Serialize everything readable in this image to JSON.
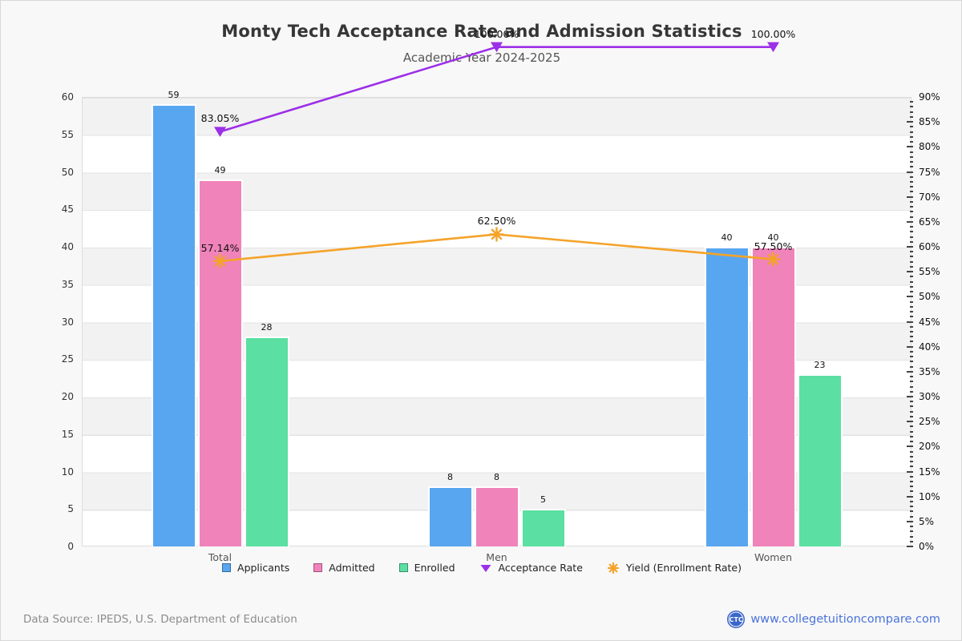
{
  "title": "Monty Tech Acceptance Rate and Admission Statistics",
  "subtitle": "Academic Year 2024-2025",
  "chart_data": {
    "type": "bar",
    "subtype": "grouped-bars-with-lines",
    "categories": [
      "Total",
      "Men",
      "Women"
    ],
    "bar_series": [
      {
        "name": "Applicants",
        "color": "#58a6f0",
        "values": [
          59,
          8,
          40
        ]
      },
      {
        "name": "Admitted",
        "color": "#f083ba",
        "values": [
          49,
          8,
          40
        ]
      },
      {
        "name": "Enrolled",
        "color": "#5bdfa2",
        "values": [
          28,
          5,
          23
        ]
      }
    ],
    "line_series": [
      {
        "name": "Acceptance Rate",
        "color": "#9c2fe8",
        "marker": "triangle-down",
        "values": [
          83.05,
          100,
          100
        ],
        "point_labels": [
          "83.05%",
          "100.00%",
          "100.00%"
        ]
      },
      {
        "name": "Yield (Enrollment Rate)",
        "color": "#f5a329",
        "marker": "asterisk",
        "values": [
          57.14,
          62.5,
          57.5
        ],
        "point_labels": [
          "57.14%",
          "62.50%",
          "57.50%"
        ]
      }
    ],
    "left_axis": {
      "min": 0,
      "max": 60,
      "step": 5
    },
    "right_axis": {
      "min": 0,
      "max": 90,
      "step": 5,
      "minor_step": 1,
      "suffix": "%"
    },
    "grid": "horizontal-bands",
    "legend_position": "bottom"
  },
  "footer": {
    "source": "Data Source: IPEDS, U.S. Department of Education",
    "logo": "CTC",
    "site": "www.collegetuitioncompare.com"
  }
}
